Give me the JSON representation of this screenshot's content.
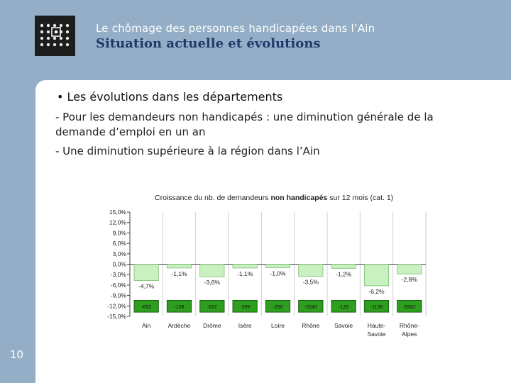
{
  "header": {
    "subtitle": "Le chômage des personnes handicapées dans l’Ain",
    "title": "Situation actuelle et évolutions"
  },
  "page_number": "10",
  "content": {
    "bullet": "• Les évolutions dans les départements",
    "para1": "- Pour les demandeurs non handicapés : une diminution générale de la demande d’emploi en un an",
    "para2": "- Une diminution supérieure à la région dans l’Ain"
  },
  "colors": {
    "bar_fill": "#c8f0c0",
    "bar_stroke": "#7cbf70",
    "count_fill": "#2e9e1e",
    "count_stroke": "#1d5e14",
    "background": "#93aec6"
  },
  "chart_data": {
    "type": "bar",
    "title_prefix": "Croissance du nb. de demandeurs ",
    "title_bold": "non handicapés",
    "title_suffix": " sur 12 mois (cat. 1)",
    "categories": [
      [
        "Ain"
      ],
      [
        "Ardèche"
      ],
      [
        "Drôme"
      ],
      [
        "Isère"
      ],
      [
        "Loire"
      ],
      [
        "Rhône"
      ],
      [
        "Savoie"
      ],
      [
        "Haute-",
        "Savoie"
      ],
      [
        "Rhône-",
        "Alpes"
      ]
    ],
    "values": [
      -4.7,
      -1.1,
      -3.6,
      -1.1,
      -1.0,
      -3.5,
      -1.2,
      -6.2,
      -2.8
    ],
    "value_labels": [
      "-4,7%",
      "-1,1%",
      "-3,6%",
      "-1,1%",
      "-1,0%",
      "-3,5%",
      "-1,2%",
      "-6,2%",
      "-2,8%"
    ],
    "counts": [
      "-652",
      "-108",
      "-637",
      "-399",
      "-250",
      "-2245",
      "-133",
      "-1138",
      "-5562"
    ],
    "yticks": [
      15,
      12,
      9,
      6,
      3,
      0,
      -3,
      -6,
      -9,
      -12,
      -15
    ],
    "ytick_labels": [
      "15,0%",
      "12,0%",
      "9,0%",
      "6,0%",
      "3,0%",
      "0,0%",
      "-3,0%",
      "-6,0%",
      "-9,0%",
      "-12,0%",
      "-15,0%"
    ],
    "ylim": [
      -15,
      15
    ],
    "xlabel": "",
    "ylabel": ""
  }
}
